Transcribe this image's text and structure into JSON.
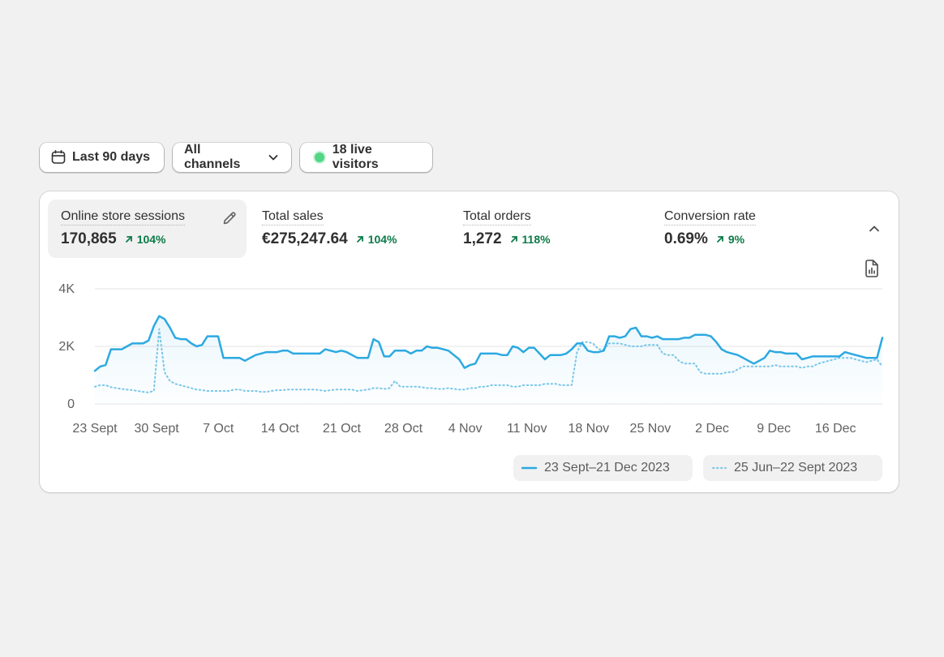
{
  "toolbar": {
    "date_range": "Last 90 days",
    "channels": "All channels",
    "live_visitors": "18 live visitors"
  },
  "metrics": [
    {
      "label": "Online store sessions",
      "value": "170,865",
      "delta": "104%"
    },
    {
      "label": "Total sales",
      "value": "€275,247.64",
      "delta": "104%"
    },
    {
      "label": "Total orders",
      "value": "1,272",
      "delta": "118%"
    },
    {
      "label": "Conversion rate",
      "value": "0.69%",
      "delta": "9%"
    }
  ],
  "colors": {
    "current": "#2ca9e1",
    "previous": "#79c6e8",
    "positive": "#0c7a48",
    "live": "#52d684"
  },
  "chart_data": {
    "type": "line",
    "title": "",
    "xlabel": "",
    "ylabel": "",
    "ylim": [
      0,
      4000
    ],
    "y_ticks": [
      "0",
      "2K",
      "4K"
    ],
    "x_ticks": [
      "23 Sept",
      "30 Sept",
      "7 Oct",
      "14 Oct",
      "21 Oct",
      "28 Oct",
      "4 Nov",
      "11 Nov",
      "18 Nov",
      "25 Nov",
      "2 Dec",
      "9 Dec",
      "16 Dec"
    ],
    "series": [
      {
        "name": "23 Sept–21 Dec 2023",
        "style": "solid",
        "values": [
          1150,
          1300,
          1350,
          1900,
          1900,
          1900,
          2000,
          2100,
          2100,
          2100,
          2200,
          2700,
          3050,
          2950,
          2650,
          2300,
          2250,
          2250,
          2100,
          2000,
          2050,
          2350,
          2350,
          2350,
          1600,
          1600,
          1600,
          1600,
          1500,
          1600,
          1700,
          1750,
          1800,
          1800,
          1800,
          1850,
          1850,
          1750,
          1750,
          1750,
          1750,
          1750,
          1750,
          1900,
          1850,
          1800,
          1850,
          1800,
          1700,
          1600,
          1600,
          1600,
          2250,
          2150,
          1650,
          1650,
          1850,
          1850,
          1850,
          1750,
          1850,
          1850,
          2000,
          1950,
          1950,
          1900,
          1850,
          1700,
          1550,
          1250,
          1350,
          1400,
          1750,
          1750,
          1750,
          1750,
          1700,
          1700,
          2000,
          1950,
          1800,
          1950,
          1950,
          1750,
          1550,
          1700,
          1700,
          1700,
          1750,
          1900,
          2100,
          2100,
          1850,
          1800,
          1800,
          1850,
          2350,
          2350,
          2300,
          2350,
          2600,
          2650,
          2350,
          2350,
          2300,
          2350,
          2250,
          2250,
          2250,
          2250,
          2300,
          2300,
          2400,
          2400,
          2400,
          2350,
          2150,
          1900,
          1800,
          1750,
          1700,
          1600,
          1500,
          1400,
          1500,
          1600,
          1850,
          1800,
          1800,
          1750,
          1750,
          1750,
          1550,
          1600,
          1650,
          1650,
          1650,
          1650,
          1650,
          1650,
          1800,
          1750,
          1700,
          1650,
          1600,
          1600,
          1600,
          2300
        ]
      },
      {
        "name": "25 Jun–22 Sept 2023",
        "style": "dotted",
        "values": [
          600,
          650,
          650,
          580,
          550,
          520,
          500,
          480,
          450,
          420,
          400,
          450,
          2600,
          1100,
          800,
          700,
          650,
          600,
          550,
          500,
          480,
          450,
          450,
          450,
          450,
          450,
          500,
          500,
          450,
          450,
          450,
          420,
          420,
          450,
          480,
          480,
          500,
          500,
          500,
          500,
          500,
          500,
          480,
          450,
          480,
          500,
          500,
          500,
          500,
          450,
          480,
          500,
          550,
          550,
          520,
          550,
          800,
          600,
          600,
          600,
          600,
          580,
          550,
          550,
          520,
          520,
          550,
          520,
          500,
          500,
          550,
          550,
          600,
          600,
          650,
          650,
          650,
          650,
          600,
          600,
          650,
          650,
          650,
          650,
          700,
          700,
          700,
          650,
          650,
          650,
          1800,
          2150,
          2150,
          2100,
          1900,
          1900,
          2100,
          2100,
          2100,
          2050,
          2000,
          2000,
          2000,
          2050,
          2050,
          2050,
          1750,
          1700,
          1700,
          1500,
          1400,
          1400,
          1400,
          1100,
          1050,
          1050,
          1050,
          1050,
          1100,
          1100,
          1200,
          1300,
          1300,
          1300,
          1300,
          1300,
          1300,
          1350,
          1300,
          1300,
          1300,
          1300,
          1250,
          1300,
          1300,
          1400,
          1450,
          1500,
          1550,
          1600,
          1600,
          1600,
          1550,
          1500,
          1450,
          1500,
          1550,
          1300
        ]
      }
    ],
    "grid": true,
    "legend_position": "bottom-right"
  }
}
